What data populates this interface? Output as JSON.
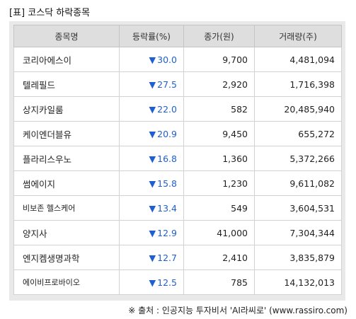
{
  "title": "[표] 코스닥 하락종목",
  "headers": [
    "종목명",
    "등락률(%)",
    "종가(원)",
    "거래량(주)"
  ],
  "arrow_glyph": "▼",
  "colors": {
    "down": "#1f5fd1",
    "header_bg": "#dedede",
    "frame_bg": "#e9e9e9"
  },
  "rows": [
    {
      "name": "코리아에스이",
      "rate": "30.0",
      "price": "9,700",
      "volume": "4,481,094"
    },
    {
      "name": "텔레필드",
      "rate": "27.5",
      "price": "2,920",
      "volume": "1,716,398"
    },
    {
      "name": "상지카일룸",
      "rate": "22.0",
      "price": "582",
      "volume": "20,485,940"
    },
    {
      "name": "케이엔더블유",
      "rate": "20.9",
      "price": "9,450",
      "volume": "655,272"
    },
    {
      "name": "플라리스우노",
      "rate": "16.8",
      "price": "1,360",
      "volume": "5,372,266"
    },
    {
      "name": "썸에이지",
      "rate": "15.8",
      "price": "1,230",
      "volume": "9,611,082"
    },
    {
      "name": "비보존 헬스케어",
      "rate": "13.4",
      "price": "549",
      "volume": "3,604,531"
    },
    {
      "name": "양지사",
      "rate": "12.9",
      "price": "41,000",
      "volume": "7,304,344"
    },
    {
      "name": "엔지켐생명과학",
      "rate": "12.7",
      "price": "2,410",
      "volume": "3,835,879"
    },
    {
      "name": "에이비프로바이오",
      "rate": "12.5",
      "price": "785",
      "volume": "14,132,013"
    }
  ],
  "source": "※ 출처 : 인공지능 투자비서 'AI라씨로' (www.rassiro.com)"
}
